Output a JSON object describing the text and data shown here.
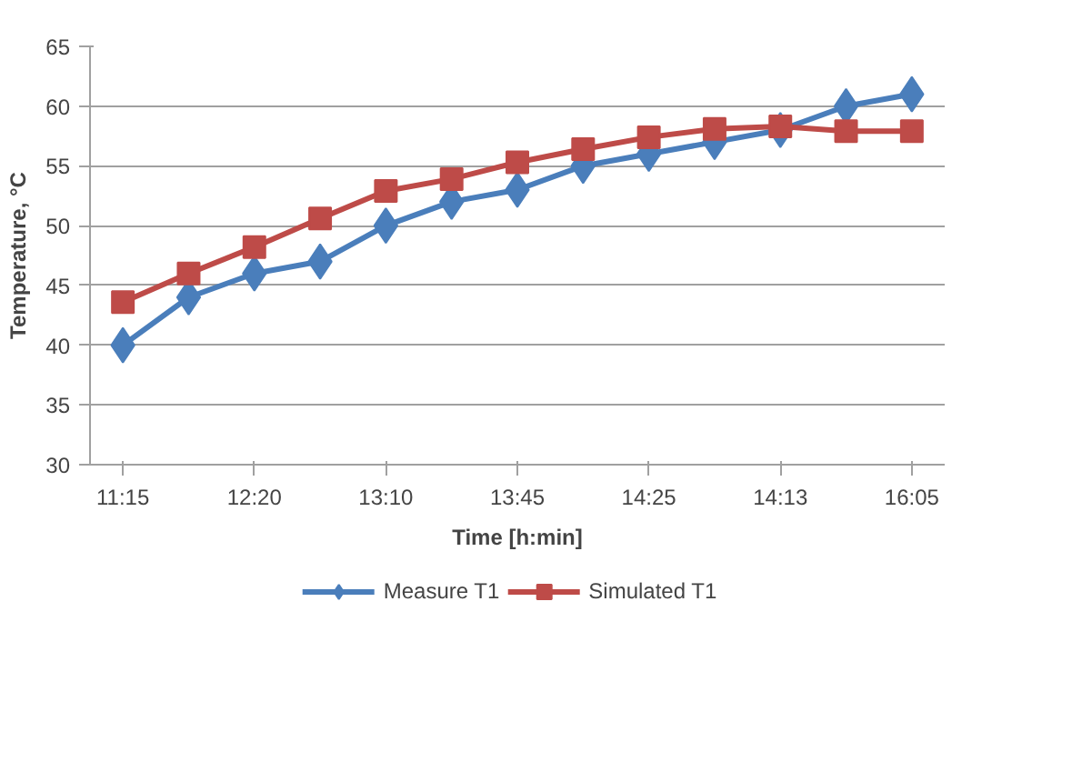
{
  "chart_data": {
    "type": "line",
    "xlabel": "Time [h:min]",
    "ylabel": "Temperature, °C",
    "categories": [
      "11:15",
      null,
      "12:20",
      null,
      "13:10",
      null,
      "13:45",
      null,
      "14:25",
      null,
      "14:13",
      null,
      "16:05"
    ],
    "series": [
      {
        "name": "Measure T1",
        "color": "#4a7ebb",
        "marker": "diamond",
        "values": [
          40,
          44,
          46,
          47,
          50,
          52,
          53,
          55,
          56,
          57,
          58,
          60,
          61
        ]
      },
      {
        "name": "Simulated T1",
        "color": "#be4b48",
        "marker": "square",
        "values": [
          43.6,
          46,
          48.2,
          50.6,
          52.9,
          53.9,
          55.3,
          56.4,
          57.4,
          58.1,
          58.3,
          57.9,
          57.9
        ]
      }
    ],
    "ylim": [
      30,
      65
    ],
    "yticks": [
      30,
      35,
      40,
      45,
      50,
      55,
      60,
      65
    ],
    "grid": "y",
    "legend": "bottom",
    "line_style": "solid"
  }
}
